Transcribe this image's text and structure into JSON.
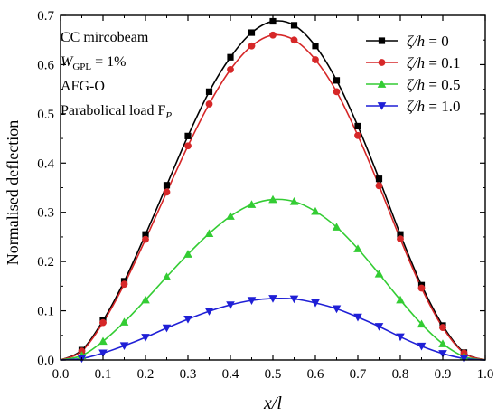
{
  "chart_data": {
    "type": "line",
    "xlabel": "x/l",
    "ylabel": "Normalised deflection",
    "xlim": [
      0.0,
      1.0
    ],
    "ylim": [
      0.0,
      0.7
    ],
    "xticks": [
      "0.0",
      "0.1",
      "0.2",
      "0.3",
      "0.4",
      "0.5",
      "0.6",
      "0.7",
      "0.8",
      "0.9",
      "1.0"
    ],
    "yticks": [
      "0.0",
      "0.1",
      "0.2",
      "0.3",
      "0.4",
      "0.5",
      "0.6",
      "0.7"
    ],
    "grid": false,
    "legend_position": "top-right",
    "annotation_lines": [
      "CC mircobeam",
      "W_GPL = 1%",
      "AFG-O",
      "Parabolical load F_P"
    ],
    "annotation": {
      "line1": "CC mircobeam",
      "line2_main": "W",
      "line2_sub": "GPL",
      "line2_rest": " = 1%",
      "line3": "AFG-O",
      "line4_main": "Parabolical load F",
      "line4_sub": "P"
    },
    "x": [
      0.0,
      0.05,
      0.1,
      0.15,
      0.2,
      0.25,
      0.3,
      0.35,
      0.4,
      0.45,
      0.5,
      0.55,
      0.6,
      0.65,
      0.7,
      0.75,
      0.8,
      0.85,
      0.9,
      0.95,
      1.0
    ],
    "series": [
      {
        "name": "ζ/h = 0",
        "legend_main": "ζ/h",
        "legend_rest": " = 0",
        "color": "#000000",
        "marker": "square",
        "values": [
          0.0,
          0.02,
          0.08,
          0.16,
          0.255,
          0.355,
          0.455,
          0.545,
          0.615,
          0.665,
          0.688,
          0.68,
          0.638,
          0.568,
          0.475,
          0.368,
          0.255,
          0.152,
          0.07,
          0.015,
          0.0
        ]
      },
      {
        "name": "ζ/h = 0.1",
        "legend_main": "ζ/h",
        "legend_rest": " = 0.1",
        "color": "#d62728",
        "marker": "circle",
        "values": [
          0.0,
          0.018,
          0.076,
          0.154,
          0.245,
          0.341,
          0.435,
          0.52,
          0.59,
          0.638,
          0.66,
          0.65,
          0.61,
          0.545,
          0.456,
          0.354,
          0.246,
          0.146,
          0.066,
          0.014,
          0.0
        ]
      },
      {
        "name": "ζ/h = 0.5",
        "legend_main": "ζ/h",
        "legend_rest": " = 0.5",
        "color": "#33cc33",
        "marker": "triangle-up",
        "values": [
          0.0,
          0.009,
          0.038,
          0.077,
          0.122,
          0.169,
          0.215,
          0.257,
          0.292,
          0.316,
          0.326,
          0.322,
          0.302,
          0.27,
          0.226,
          0.175,
          0.122,
          0.073,
          0.033,
          0.007,
          0.0
        ]
      },
      {
        "name": "ζ/h = 1.0",
        "legend_main": "ζ/h",
        "legend_rest": " = 1.0",
        "color": "#1f1fd6",
        "marker": "triangle-down",
        "values": [
          0.0,
          0.003,
          0.014,
          0.029,
          0.046,
          0.065,
          0.083,
          0.099,
          0.112,
          0.121,
          0.125,
          0.124,
          0.116,
          0.104,
          0.087,
          0.068,
          0.047,
          0.028,
          0.013,
          0.003,
          0.0
        ]
      }
    ]
  }
}
